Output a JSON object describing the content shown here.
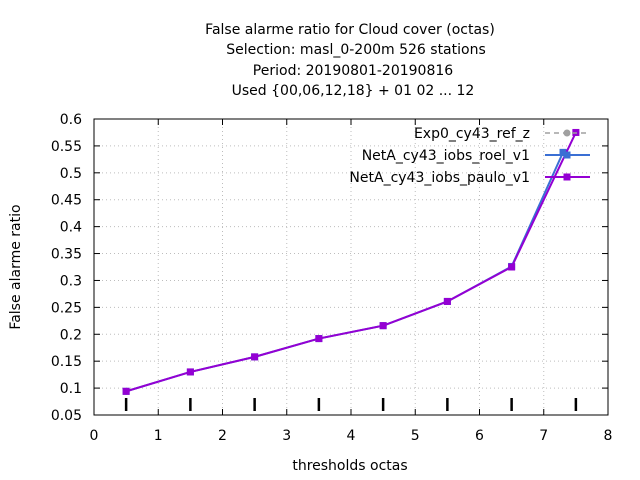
{
  "chart_data": {
    "type": "line",
    "title_lines": [
      "False alarme ratio  for Cloud cover (octas)",
      "Selection: masl_0-200m    526 stations",
      "Period: 20190801-20190816",
      "Used {00,06,12,18} + 01 02 ... 12"
    ],
    "xlabel": "thresholds octas",
    "ylabel": "False alarme ratio",
    "xlim": [
      0,
      8
    ],
    "ylim": [
      0.05,
      0.6
    ],
    "x_ticks": [
      "0",
      "1",
      "2",
      "3",
      "4",
      "5",
      "6",
      "7",
      "8"
    ],
    "y_ticks": [
      "0.05",
      "0.1",
      "0.15",
      "0.2",
      "0.25",
      "0.3",
      "0.35",
      "0.4",
      "0.45",
      "0.5",
      "0.55",
      "0.6"
    ],
    "grid": true,
    "legend_position": "top-right",
    "series": [
      {
        "name": "Exp0_cy43_ref_z",
        "color": "#a0a0a0",
        "style": "dashed",
        "x": [
          0.5,
          1.5,
          2.5,
          3.5,
          4.5,
          5.5,
          6.5,
          7.5
        ],
        "values": [
          0.094,
          0.13,
          0.158,
          0.192,
          0.216,
          0.261,
          0.325,
          0.575
        ]
      },
      {
        "name": "NetA_cy43_iobs_roel_v1",
        "color": "#3a6fd4",
        "style": "solid",
        "x": [
          0.5,
          1.5,
          2.5,
          3.5,
          4.5,
          5.5,
          6.5,
          7.3
        ],
        "values": [
          0.094,
          0.13,
          0.158,
          0.192,
          0.216,
          0.261,
          0.326,
          0.538
        ]
      },
      {
        "name": "NetA_cy43_iobs_paulo_v1",
        "color": "#9400d3",
        "style": "solid",
        "x": [
          0.5,
          1.5,
          2.5,
          3.5,
          4.5,
          5.5,
          6.5,
          7.5
        ],
        "values": [
          0.094,
          0.13,
          0.158,
          0.192,
          0.216,
          0.261,
          0.325,
          0.575
        ]
      }
    ],
    "count_marker_x": [
      0.5,
      1.5,
      2.5,
      3.5,
      4.5,
      5.5,
      6.5,
      7.5
    ]
  }
}
